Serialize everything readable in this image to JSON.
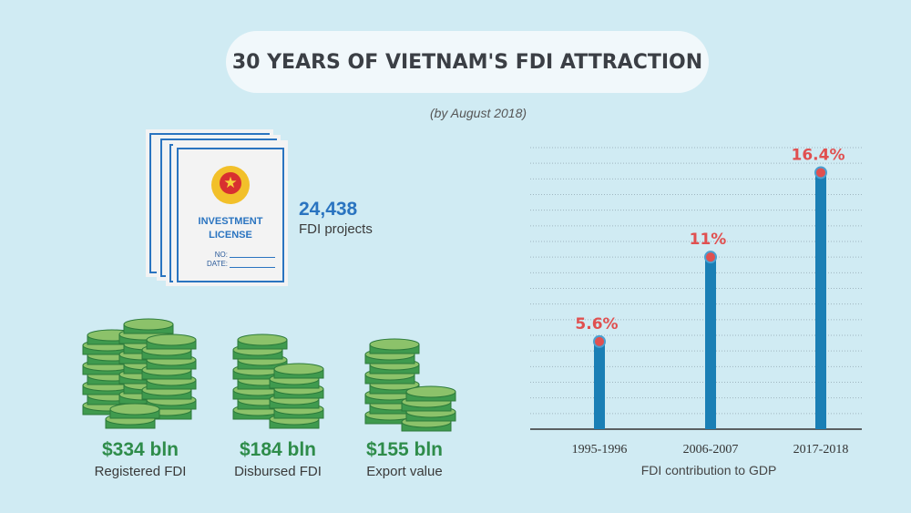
{
  "title": "30 YEARS OF VIETNAM'S FDI ATTRACTION",
  "subtitle": "(by August 2018)",
  "license": {
    "line1": "INVESTMENT",
    "line2": "LICENSE",
    "no": "NO:",
    "date": "DATE:"
  },
  "projects": {
    "value": "24,438",
    "label": "FDI projects"
  },
  "stats": [
    {
      "value": "$334 bln",
      "label": "Registered FDI"
    },
    {
      "value": "$184 bln",
      "label": "Disbursed FDI"
    },
    {
      "value": "$155 bln",
      "label": "Export value"
    }
  ],
  "colors": {
    "bar": "#1a7fb5",
    "point": "#e05050",
    "value_label": "#e05050",
    "money": "#2e8c4a",
    "projects": "#2a74c0"
  },
  "chart_data": {
    "type": "bar",
    "categories": [
      "1995-1996",
      "2006-2007",
      "2017-2018"
    ],
    "values": [
      5.6,
      11,
      16.4
    ],
    "data_labels": [
      "5.6%",
      "11%",
      "16.4%"
    ],
    "xlabel": "FDI contribution to GDP",
    "ylabel": "",
    "ylim": [
      0,
      18
    ],
    "grid": true
  }
}
